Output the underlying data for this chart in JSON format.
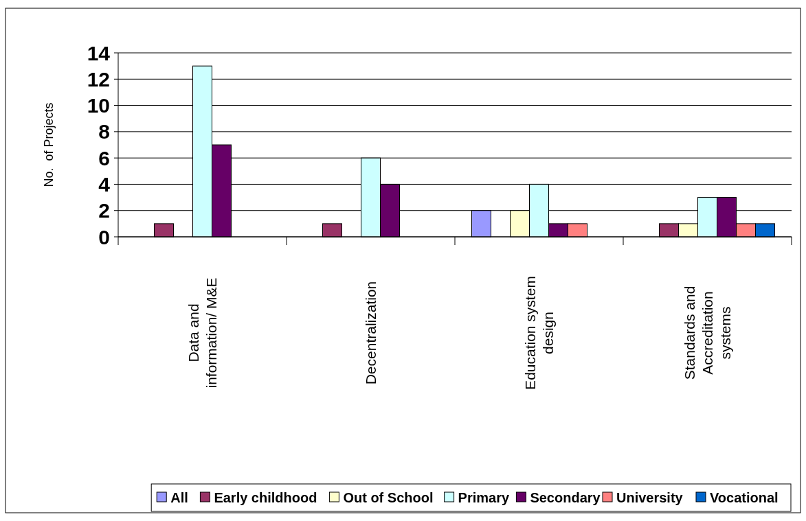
{
  "chart_data": {
    "type": "bar",
    "ylabel": "No.  of Projects",
    "categories": [
      "Data and information/ M&E",
      "Decentralization",
      "Education system design",
      "Standards and Accreditation systems"
    ],
    "series": [
      {
        "name": "All",
        "color": "#9999ff",
        "values": [
          0,
          0,
          2,
          0
        ]
      },
      {
        "name": "Early childhood",
        "color": "#993366",
        "values": [
          1,
          1,
          0,
          1
        ]
      },
      {
        "name": "Out of School",
        "color": "#ffffcc",
        "values": [
          0,
          0,
          2,
          1
        ]
      },
      {
        "name": "Primary",
        "color": "#ccffff",
        "values": [
          13,
          6,
          4,
          3
        ]
      },
      {
        "name": "Secondary",
        "color": "#660066",
        "values": [
          7,
          4,
          1,
          3
        ]
      },
      {
        "name": "University",
        "color": "#ff8080",
        "values": [
          0,
          0,
          1,
          1
        ]
      },
      {
        "name": "Vocational",
        "color": "#0066cc",
        "values": [
          0,
          0,
          0,
          1
        ]
      }
    ],
    "ylim": [
      0,
      14
    ],
    "yticks": [
      0,
      2,
      4,
      6,
      8,
      10,
      12,
      14
    ],
    "grid": "y",
    "legend": "bottom"
  }
}
